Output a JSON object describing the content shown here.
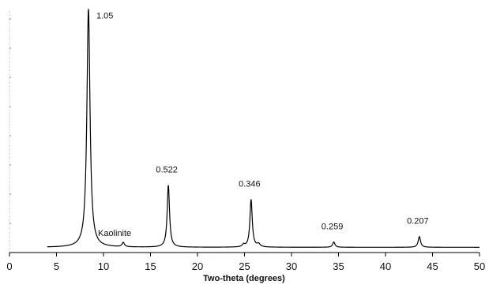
{
  "chart_data": {
    "type": "line",
    "title": "",
    "xlabel": "Two-theta (degrees)",
    "ylabel": "",
    "xlim": [
      0,
      50
    ],
    "ylim": [
      0,
      100
    ],
    "grid": false,
    "x_ticks": [
      0,
      5,
      10,
      15,
      20,
      25,
      30,
      35,
      40,
      45,
      50
    ],
    "y_ticks_count": 8,
    "baseline": 2.2,
    "baseline_start": 4.0,
    "baseline_end": 50.0,
    "peaks": [
      {
        "x": 8.4,
        "height": 100,
        "width": 0.2,
        "label": "1.05"
      },
      {
        "x": 12.1,
        "height": 1.8,
        "width": 0.15,
        "label": ""
      },
      {
        "x": 16.9,
        "height": 26,
        "width": 0.15,
        "label": "0.522"
      },
      {
        "x": 24.9,
        "height": 1.0,
        "width": 0.15,
        "label": ""
      },
      {
        "x": 25.7,
        "height": 20,
        "width": 0.15,
        "label": "0.346"
      },
      {
        "x": 26.5,
        "height": 1.2,
        "width": 0.2,
        "label": ""
      },
      {
        "x": 34.5,
        "height": 2.2,
        "width": 0.15,
        "label": "0.259"
      },
      {
        "x": 43.6,
        "height": 4.5,
        "width": 0.15,
        "label": "0.207"
      }
    ],
    "annotations": [
      {
        "text": "Kaolinite",
        "x": 12.1
      }
    ],
    "line_color": "#000000"
  }
}
